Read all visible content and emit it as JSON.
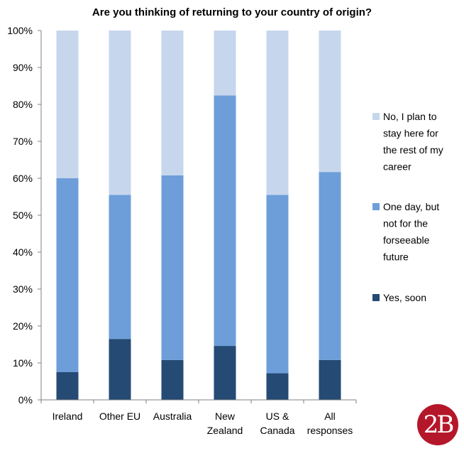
{
  "chart_data": {
    "type": "bar",
    "stacked": true,
    "title": "Are you thinking of returning to your country of origin?",
    "xlabel": "",
    "ylabel": "",
    "ylim": [
      0,
      100
    ],
    "y_ticks": [
      "0%",
      "10%",
      "20%",
      "30%",
      "40%",
      "50%",
      "60%",
      "70%",
      "80%",
      "90%",
      "100%"
    ],
    "grid": false,
    "legend_position": "right",
    "categories": [
      [
        "Ireland"
      ],
      [
        "Other EU"
      ],
      [
        "Australia"
      ],
      [
        "New",
        "Zealand"
      ],
      [
        "US &",
        "Canada"
      ],
      [
        "All",
        "responses"
      ]
    ],
    "series": [
      {
        "name": "Yes, soon",
        "legend_lines": [
          "Yes, soon"
        ],
        "color": "#254a74",
        "values": [
          7.5,
          16.5,
          10.8,
          14.6,
          7.2,
          10.8
        ]
      },
      {
        "name": "One day, but not for the forseeable future",
        "legend_lines": [
          "One day, but",
          "not for the",
          "forseeable",
          "future"
        ],
        "color": "#6d9ed9",
        "values": [
          52.5,
          39.0,
          50.0,
          67.8,
          48.3,
          50.9
        ]
      },
      {
        "name": "No, I plan to stay here for the rest of my career",
        "legend_lines": [
          "No, I plan to",
          "stay here for",
          "the rest of my",
          "career"
        ],
        "color": "#c6d6ed",
        "values": [
          40.0,
          44.5,
          39.2,
          17.6,
          44.5,
          38.3
        ]
      }
    ]
  },
  "logo": {
    "text": "2B",
    "color": "#b5172a"
  }
}
